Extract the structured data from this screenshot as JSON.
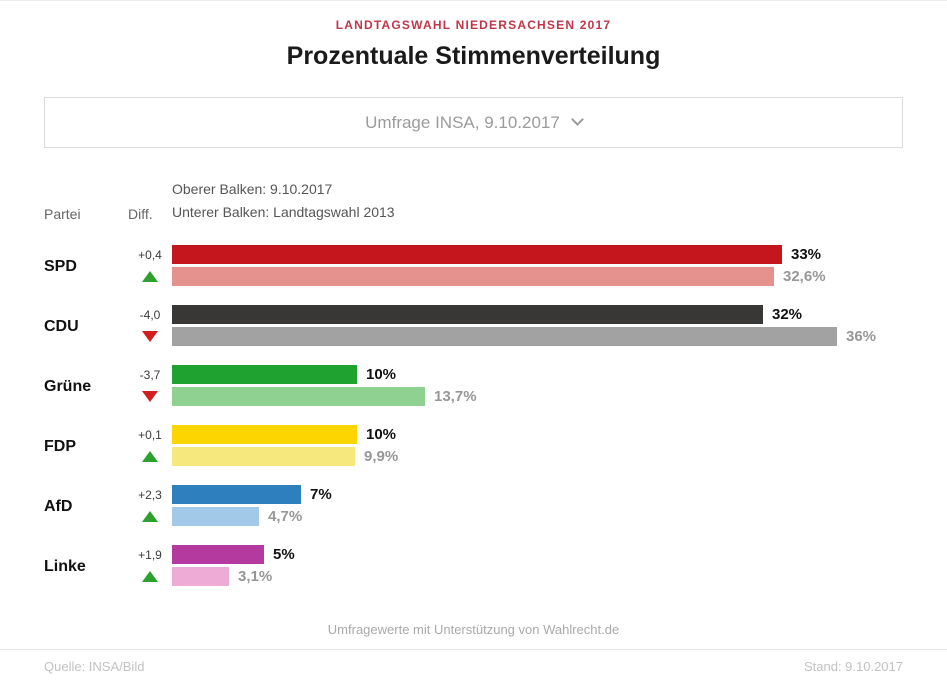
{
  "header": {
    "kicker": "LANDTAGSWAHL NIEDERSACHSEN 2017",
    "title": "Prozentuale Stimmenverteilung",
    "kicker_color": "#c03648"
  },
  "selector": {
    "label": "Umfrage INSA, 9.10.2017"
  },
  "table_header": {
    "party_col": "Partei",
    "diff_col": "Diff.",
    "legend_line1": "Oberer Balken: 9.10.2017",
    "legend_line2": "Unterer Balken: Landtagswahl 2013"
  },
  "chart_data": {
    "type": "bar",
    "orientation": "horizontal",
    "title": "Prozentuale Stimmenverteilung",
    "subtitle": "Landtagswahl Niedersachsen 2017",
    "categories": [
      "SPD",
      "CDU",
      "Grüne",
      "FDP",
      "AfD",
      "Linke"
    ],
    "series": [
      {
        "name": "9.10.2017",
        "values": [
          33,
          32,
          10,
          10,
          7,
          5
        ]
      },
      {
        "name": "Landtagswahl 2013",
        "values": [
          32.6,
          36,
          13.7,
          9.9,
          4.7,
          3.1
        ]
      }
    ],
    "diffs": [
      "+0,4",
      "-4,0",
      "-3,7",
      "+0,1",
      "+2,3",
      "+1,9"
    ],
    "trends": [
      "up",
      "down",
      "down",
      "up",
      "up",
      "up"
    ],
    "value_labels_current": [
      "33%",
      "32%",
      "10%",
      "10%",
      "7%",
      "5%"
    ],
    "value_labels_previous": [
      "32,6%",
      "36%",
      "13,7%",
      "9,9%",
      "4,7%",
      "3,1%"
    ],
    "colors_current": [
      "#c4161c",
      "#383735",
      "#1fa22f",
      "#fdd602",
      "#2e7fbe",
      "#b43a9f"
    ],
    "colors_previous": [
      "#e5918d",
      "#a2a2a2",
      "#8fd190",
      "#f7e87d",
      "#a3c9e8",
      "#eeabd5"
    ],
    "trend_colors": {
      "up": "#2da12d",
      "down": "#d21e1e"
    },
    "xlim": [
      0,
      36.5
    ],
    "grid": false,
    "legend_position": "top"
  },
  "footer": {
    "credit": "Umfragewerte mit Unterstützung von Wahlrecht.de",
    "source": "Quelle: INSA/Bild",
    "stand": "Stand: 9.10.2017"
  }
}
